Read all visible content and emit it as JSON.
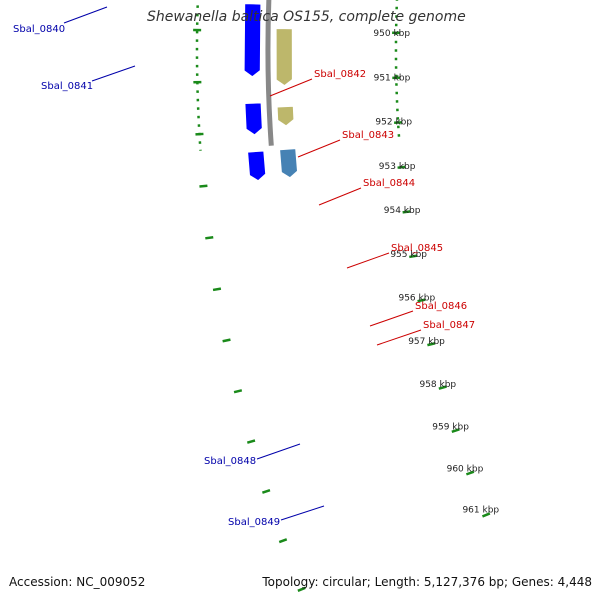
{
  "title": "Shewanella baltica OS155, complete genome",
  "footer": {
    "accession": "Accession: NC_009052",
    "topology": "Topology: circular; Length: 5,127,376 bp; Genes: 4,448"
  },
  "ticks": [
    {
      "label": "950 kbp"
    },
    {
      "label": "951 kbp"
    },
    {
      "label": "952 kbp"
    },
    {
      "label": "953 kbp"
    },
    {
      "label": "954 kbp"
    },
    {
      "label": "955 kbp"
    },
    {
      "label": "956 kbp"
    },
    {
      "label": "957 kbp"
    },
    {
      "label": "958 kbp"
    },
    {
      "label": "959 kbp"
    },
    {
      "label": "960 kbp"
    },
    {
      "label": "961 kbp"
    }
  ],
  "gene_labels": [
    {
      "name": "Sbal_0840",
      "color": "#0000aa"
    },
    {
      "name": "Sbal_0841",
      "color": "#0000aa"
    },
    {
      "name": "Sbal_0842",
      "color": "#cc0000"
    },
    {
      "name": "Sbal_0843",
      "color": "#cc0000"
    },
    {
      "name": "Sbal_0844",
      "color": "#cc0000"
    },
    {
      "name": "Sbal_0845",
      "color": "#cc0000"
    },
    {
      "name": "Sbal_0846",
      "color": "#cc0000"
    },
    {
      "name": "Sbal_0847",
      "color": "#cc0000"
    },
    {
      "name": "Sbal_0848",
      "color": "#0000aa"
    },
    {
      "name": "Sbal_0849",
      "color": "#0000aa"
    }
  ],
  "colors": {
    "backbone": "#888888",
    "guide_dots": "#1a8a1a",
    "forward_gene": "#ff0000",
    "reverse_gene": "#0000ff"
  }
}
